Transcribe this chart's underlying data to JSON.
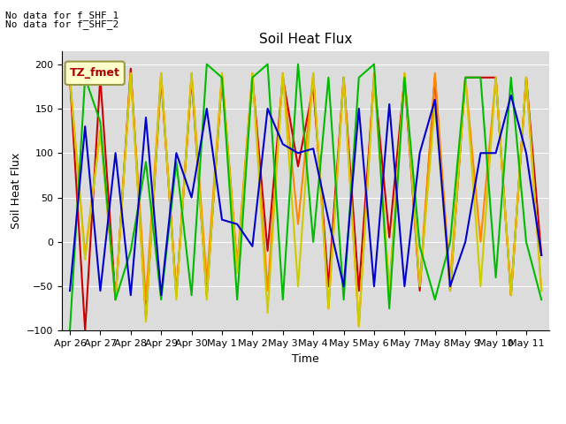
{
  "title": "Soil Heat Flux",
  "ylabel": "Soil Heat Flux",
  "xlabel": "Time",
  "ylim": [
    -100,
    215
  ],
  "yticks": [
    -100,
    -50,
    0,
    50,
    100,
    150,
    200
  ],
  "background_color": "#dcdcdc",
  "annotation_text1": "No data for f_SHF_1",
  "annotation_text2": "No data for f_SHF_2",
  "legend_label": "TZ_fmet",
  "series_colors": {
    "SHF1": "#cc0000",
    "SHF2": "#ff8800",
    "SHF3": "#cccc00",
    "SHF4": "#00bb00",
    "SHF5": "#0000cc"
  },
  "x_tick_labels": [
    "Apr 26",
    "Apr 27",
    "Apr 28",
    "Apr 29",
    "Apr 30",
    "May 1",
    "May 2",
    "May 3",
    "May 4",
    "May 5",
    "May 6",
    "May 7",
    "May 8",
    "May 9",
    "May 10",
    "May 11"
  ],
  "SHF1": [
    185,
    -100,
    185,
    -65,
    195,
    -85,
    185,
    -60,
    185,
    -60,
    185,
    -30,
    185,
    -10,
    185,
    85,
    175,
    -50,
    185,
    -55,
    185,
    5,
    185,
    -55,
    185,
    -55,
    185,
    185,
    185,
    -60,
    185,
    -15
  ],
  "SHF2": [
    185,
    -15,
    125,
    -65,
    190,
    -65,
    190,
    -60,
    190,
    -45,
    190,
    -25,
    190,
    -55,
    190,
    20,
    190,
    -75,
    185,
    -95,
    190,
    -55,
    190,
    -50,
    190,
    -45,
    185,
    0,
    185,
    -60,
    185,
    -55
  ],
  "SHF3": [
    185,
    -20,
    125,
    -65,
    190,
    -90,
    190,
    -65,
    190,
    -65,
    190,
    -35,
    190,
    -80,
    190,
    -50,
    190,
    -75,
    185,
    -95,
    185,
    -55,
    190,
    -50,
    155,
    -55,
    185,
    -50,
    185,
    -60,
    185,
    -55
  ],
  "SHF4": [
    -100,
    185,
    135,
    -65,
    -10,
    90,
    -65,
    90,
    -60,
    200,
    185,
    -65,
    185,
    200,
    -65,
    200,
    0,
    185,
    -65,
    185,
    200,
    -75,
    185,
    -5,
    -65,
    0,
    185,
    185,
    -40,
    185,
    0,
    -65
  ],
  "SHF5": [
    -55,
    130,
    -55,
    100,
    -60,
    140,
    -60,
    100,
    50,
    150,
    25,
    20,
    -5,
    150,
    110,
    100,
    105,
    25,
    -50,
    150,
    -50,
    155,
    -50,
    100,
    160,
    -50,
    0,
    100,
    100,
    165,
    100,
    -15
  ],
  "n_points": 32
}
